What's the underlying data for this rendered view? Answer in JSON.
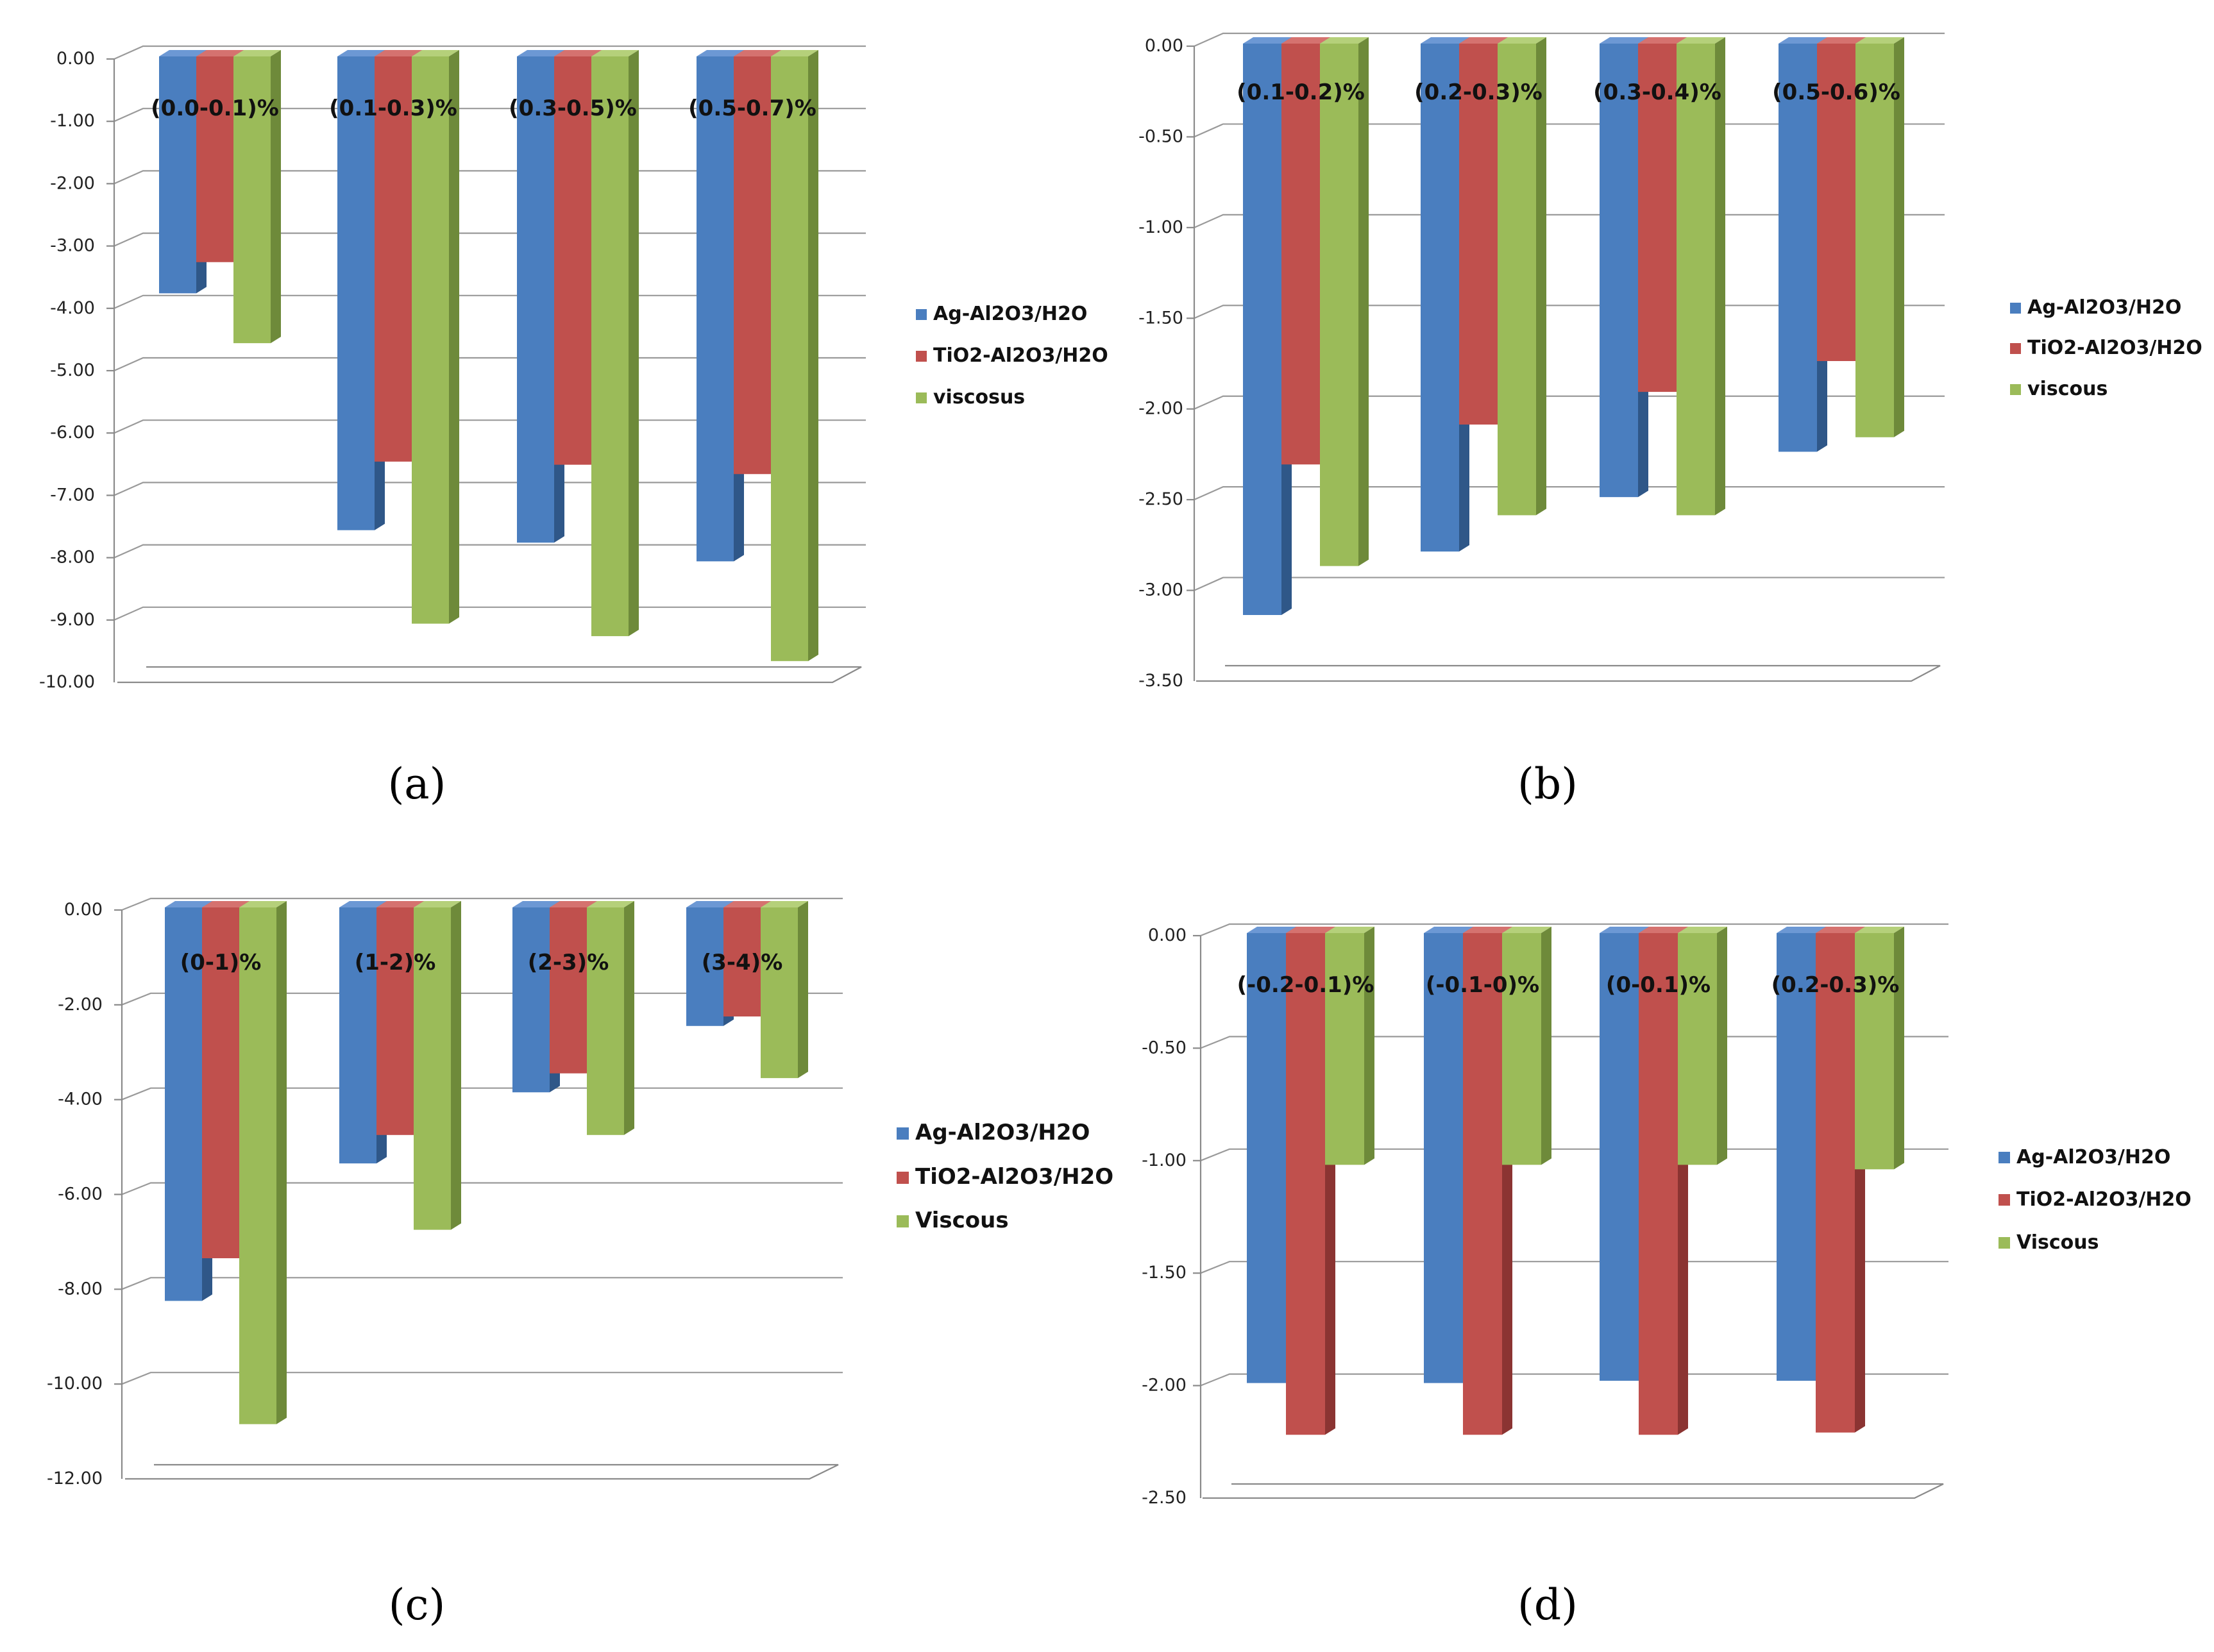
{
  "colors": {
    "blue": "#4a7ebf",
    "blue_side": "#2f5788",
    "blue_top": "#6c98d4",
    "red": "#c0504d",
    "red_side": "#8b3432",
    "red_top": "#d5726f",
    "green": "#9bbb59",
    "green_side": "#6e8a3a",
    "green_top": "#b5d07a"
  },
  "chart_data": [
    {
      "type": "bar",
      "panel_label": "(a)",
      "categories": [
        "(0.0-0.1)%",
        "(0.1-0.3)%",
        "(0.3-0.5)%",
        "(0.5-0.7)%"
      ],
      "series": [
        {
          "name": "Ag-Al2O3/H2O",
          "values": [
            -3.8,
            -7.6,
            -7.8,
            -8.1
          ]
        },
        {
          "name": "TiO2-Al2O3/H2O",
          "values": [
            -3.3,
            -6.5,
            -6.55,
            -6.7
          ]
        },
        {
          "name": "viscosus",
          "values": [
            -4.6,
            -9.1,
            -9.3,
            -9.7
          ]
        }
      ],
      "ylim": [
        -10,
        0
      ],
      "ytick_step": 1,
      "yticks": [
        "0.00",
        "-1.00",
        "-2.00",
        "-3.00",
        "-4.00",
        "-5.00",
        "-6.00",
        "-7.00",
        "-8.00",
        "-9.00",
        "-10.00"
      ]
    },
    {
      "type": "bar",
      "panel_label": "(b)",
      "categories": [
        "(0.1-0.2)%",
        "(0.2-0.3)%",
        "(0.3-0.4)%",
        "(0.5-0.6)%"
      ],
      "series": [
        {
          "name": "Ag-Al2O3/H2O",
          "values": [
            -3.15,
            -2.8,
            -2.5,
            -2.25
          ]
        },
        {
          "name": "TiO2-Al2O3/H2O",
          "values": [
            -2.32,
            -2.1,
            -1.92,
            -1.75
          ]
        },
        {
          "name": "viscous",
          "values": [
            -2.88,
            -2.6,
            -2.6,
            -2.17
          ]
        }
      ],
      "ylim": [
        -3.5,
        0
      ],
      "ytick_step": 0.5,
      "yticks": [
        "0.00",
        "-0.50",
        "-1.00",
        "-1.50",
        "-2.00",
        "-2.50",
        "-3.00",
        "-3.50"
      ]
    },
    {
      "type": "bar",
      "panel_label": "(c)",
      "categories": [
        "(0-1)%",
        "(1-2)%",
        "(2-3)%",
        "(3-4)%"
      ],
      "series": [
        {
          "name": "Ag-Al2O3/H2O",
          "values": [
            -8.3,
            -5.4,
            -3.9,
            -2.5
          ]
        },
        {
          "name": "TiO2-Al2O3/H2O",
          "values": [
            -7.4,
            -4.8,
            -3.5,
            -2.3
          ]
        },
        {
          "name": "Viscous",
          "values": [
            -10.9,
            -6.8,
            -4.8,
            -3.6
          ]
        }
      ],
      "ylim": [
        -12,
        0
      ],
      "ytick_step": 2,
      "yticks": [
        "0.00",
        "-2.00",
        "-4.00",
        "-6.00",
        "-8.00",
        "-10.00",
        "-12.00"
      ]
    },
    {
      "type": "bar",
      "panel_label": "(d)",
      "categories": [
        "(-0.2-0.1)%",
        "(-0.1-0)%",
        "(0-0.1)%",
        "(0.2-0.3)%"
      ],
      "series": [
        {
          "name": "Ag-Al2O3/H2O",
          "values": [
            -2.0,
            -2.0,
            -1.99,
            -1.99
          ]
        },
        {
          "name": "TiO2-Al2O3/H2O",
          "values": [
            -2.23,
            -2.23,
            -2.23,
            -2.22
          ]
        },
        {
          "name": "Viscous",
          "values": [
            -1.03,
            -1.03,
            -1.03,
            -1.05
          ]
        }
      ],
      "ylim": [
        -2.5,
        0
      ],
      "ytick_step": 0.5,
      "yticks": [
        "0.00",
        "-0.50",
        "-1.00",
        "-1.50",
        "-2.00",
        "-2.50"
      ]
    }
  ]
}
